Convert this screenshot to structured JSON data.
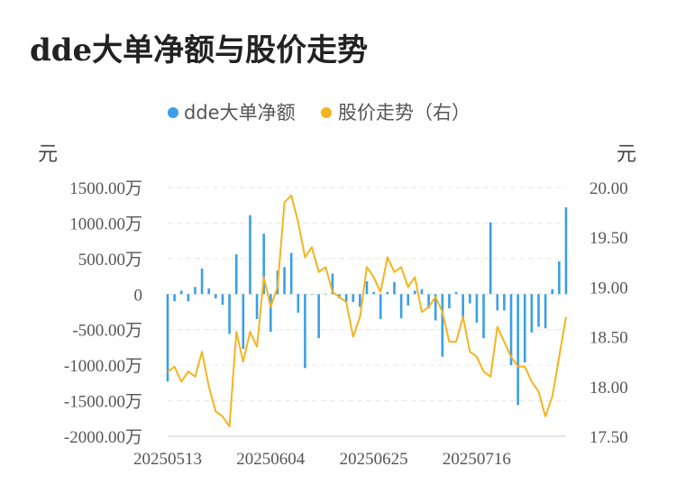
{
  "title": "dde大单净额与股价走势",
  "chart_data": {
    "type": "bar+line",
    "legend": [
      {
        "name": "dde大单净额",
        "color": "#3a9fe8"
      },
      {
        "name": "股价走势（右）",
        "color": "#f5b41e"
      }
    ],
    "legend_position": "top-center",
    "y_left": {
      "unit": "元",
      "ylim": [
        -2000,
        1500
      ],
      "ticks": [
        "1500.00万",
        "1000.00万",
        "500.00万",
        "0",
        "-500.00万",
        "-1000.00万",
        "-1500.00万",
        "-2000.00万"
      ]
    },
    "y_right": {
      "unit": "元",
      "ylim": [
        17.5,
        20.0
      ],
      "ticks": [
        "20.00",
        "19.50",
        "19.00",
        "18.50",
        "18.00",
        "17.50"
      ]
    },
    "x_tick_labels": [
      "20250513",
      "20250604",
      "20250625",
      "20250716"
    ],
    "x_tick_index": [
      0,
      15,
      30,
      45
    ],
    "grid": true,
    "bar_values": [
      -1230,
      -100,
      50,
      -100,
      100,
      360,
      80,
      -60,
      -150,
      -560,
      560,
      -770,
      1110,
      -350,
      850,
      -530,
      330,
      380,
      580,
      -260,
      -1040,
      0,
      -620,
      0,
      290,
      -60,
      -110,
      -110,
      -180,
      180,
      30,
      -350,
      30,
      170,
      -340,
      -160,
      50,
      70,
      -200,
      -370,
      -880,
      -200,
      30,
      -370,
      -130,
      -400,
      -620,
      1010,
      -230,
      -230,
      -1000,
      -1560,
      -960,
      -540,
      -460,
      -480,
      70,
      460,
      1220
    ],
    "line_values": [
      18.15,
      18.2,
      18.05,
      18.15,
      18.1,
      18.35,
      18.0,
      17.75,
      17.7,
      17.6,
      18.55,
      18.25,
      18.55,
      18.4,
      19.1,
      18.8,
      19.0,
      19.85,
      19.92,
      19.65,
      19.3,
      19.4,
      19.15,
      19.2,
      18.95,
      18.9,
      18.85,
      18.5,
      18.7,
      19.2,
      19.1,
      18.95,
      19.3,
      19.15,
      19.2,
      19.0,
      19.1,
      18.75,
      18.8,
      18.9,
      18.75,
      18.45,
      18.45,
      18.7,
      18.35,
      18.3,
      18.15,
      18.1,
      18.6,
      18.45,
      18.3,
      18.2,
      18.2,
      18.05,
      17.95,
      17.7,
      17.9,
      18.3,
      18.7
    ]
  }
}
